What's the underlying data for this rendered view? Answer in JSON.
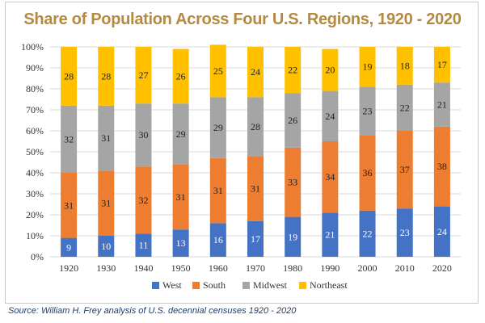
{
  "chart_data": {
    "type": "bar",
    "stacked": true,
    "percent_stacked": true,
    "title": "Share of Population Across Four U.S. Regions, 1920 - 2020",
    "categories": [
      "1920",
      "1930",
      "1940",
      "1950",
      "1960",
      "1970",
      "1980",
      "1990",
      "2000",
      "2010",
      "2020"
    ],
    "series": [
      {
        "name": "West",
        "color": "#4472c4",
        "values": [
          9,
          10,
          11,
          13,
          16,
          17,
          19,
          21,
          22,
          23,
          24
        ]
      },
      {
        "name": "South",
        "color": "#ed7d31",
        "values": [
          31,
          31,
          32,
          31,
          31,
          31,
          33,
          34,
          36,
          37,
          38
        ]
      },
      {
        "name": "Midwest",
        "color": "#a5a5a5",
        "values": [
          32,
          31,
          30,
          29,
          29,
          28,
          26,
          24,
          23,
          22,
          21
        ]
      },
      {
        "name": "Northeast",
        "color": "#ffc000",
        "values": [
          28,
          28,
          27,
          26,
          25,
          24,
          22,
          20,
          19,
          18,
          17
        ]
      }
    ],
    "ylim": [
      0,
      100
    ],
    "yticks": [
      "0%",
      "10%",
      "20%",
      "30%",
      "40%",
      "50%",
      "60%",
      "70%",
      "80%",
      "90%",
      "100%"
    ],
    "grid": true,
    "legend": "bottom"
  },
  "source": "Source: William H. Frey analysis of U.S. decennial censuses 1920 - 2020"
}
